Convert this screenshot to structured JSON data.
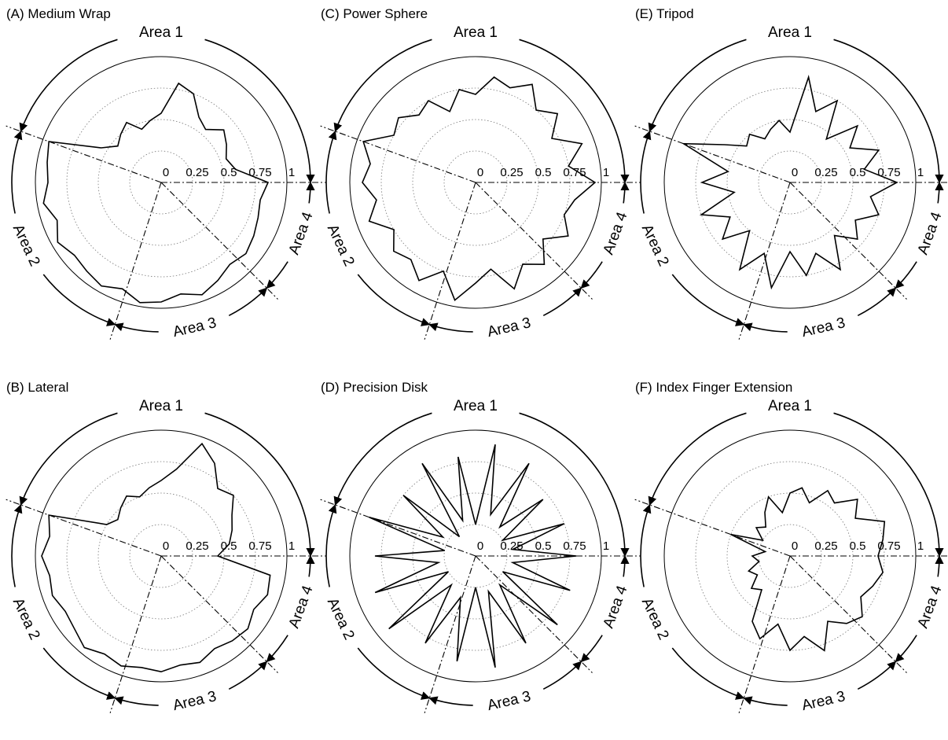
{
  "chart_data": [
    {
      "type": "polar",
      "title": "(A) Medium Wrap",
      "rlim": [
        0,
        1
      ],
      "rticks": [
        0,
        0.25,
        0.5,
        0.75,
        1
      ],
      "areas": [
        "Area 1",
        "Area 2",
        "Area 3",
        "Area 4"
      ],
      "color": "#000000",
      "values": [
        0.85,
        0.6,
        0.55,
        0.6,
        0.65,
        0.55,
        0.6,
        0.75,
        0.8,
        0.55,
        0.5,
        0.45,
        0.55,
        0.5,
        0.45,
        0.55,
        0.95,
        0.92,
        0.9,
        0.95,
        0.88,
        0.95,
        0.9,
        0.92,
        0.95,
        0.9,
        0.97,
        0.95,
        0.9,
        0.95,
        0.9,
        0.85,
        0.88,
        0.85,
        0.82,
        0.8
      ]
    },
    {
      "type": "polar",
      "title": "(B) Lateral",
      "rlim": [
        0,
        1
      ],
      "rticks": [
        0,
        0.25,
        0.5,
        0.75,
        1
      ],
      "areas": [
        "Area 1",
        "Area 2",
        "Area 3",
        "Area 4"
      ],
      "color": "#000000",
      "values": [
        0.45,
        0.55,
        0.6,
        0.65,
        0.75,
        0.7,
        0.85,
        0.95,
        0.7,
        0.6,
        0.55,
        0.5,
        0.55,
        0.5,
        0.45,
        0.5,
        0.95,
        0.9,
        0.95,
        0.9,
        0.92,
        0.88,
        0.9,
        0.95,
        0.9,
        0.93,
        0.9,
        0.92,
        0.88,
        0.9,
        0.85,
        0.88,
        0.9,
        0.85,
        0.9,
        0.88
      ]
    },
    {
      "type": "polar",
      "title": "(C)  Power Sphere",
      "rlim": [
        0,
        1
      ],
      "rticks": [
        0,
        0.25,
        0.5,
        0.75,
        1
      ],
      "areas": [
        "Area 1",
        "Area 2",
        "Area 3",
        "Area 4"
      ],
      "color": "#000000",
      "values": [
        0.95,
        0.75,
        0.9,
        0.7,
        0.85,
        0.75,
        0.9,
        0.8,
        0.85,
        0.7,
        0.75,
        0.6,
        0.75,
        0.7,
        0.8,
        0.75,
        0.95,
        0.85,
        0.9,
        0.8,
        0.9,
        0.75,
        0.85,
        0.8,
        0.9,
        0.75,
        0.95,
        0.8,
        0.7,
        0.9,
        0.75,
        0.85,
        0.7,
        0.85,
        0.75,
        0.8
      ]
    },
    {
      "type": "polar",
      "title": "(D) Precision Disk",
      "rlim": [
        0,
        1
      ],
      "rticks": [
        0,
        0.25,
        0.5,
        0.75,
        1
      ],
      "areas": [
        "Area 1",
        "Area 2",
        "Area 3",
        "Area 4"
      ],
      "color": "#000000",
      "values": [
        0.8,
        0.3,
        0.75,
        0.25,
        0.7,
        0.3,
        0.85,
        0.35,
        0.9,
        0.25,
        0.8,
        0.3,
        0.85,
        0.2,
        0.75,
        0.3,
        0.9,
        0.25,
        0.8,
        0.3,
        0.85,
        0.25,
        0.9,
        0.3,
        0.8,
        0.35,
        0.85,
        0.25,
        0.9,
        0.3,
        0.8,
        0.3,
        0.85,
        0.25,
        0.8,
        0.3
      ]
    },
    {
      "type": "polar",
      "title": "(E) Tripod",
      "rlim": [
        0,
        1
      ],
      "rticks": [
        0,
        0.25,
        0.5,
        0.75,
        1
      ],
      "areas": [
        "Area 1",
        "Area 2",
        "Area 3",
        "Area 4"
      ],
      "color": "#000000",
      "values": [
        0.85,
        0.6,
        0.75,
        0.55,
        0.7,
        0.45,
        0.75,
        0.6,
        0.85,
        0.4,
        0.5,
        0.45,
        0.4,
        0.5,
        0.45,
        0.6,
        0.9,
        0.5,
        0.7,
        0.45,
        0.75,
        0.55,
        0.7,
        0.5,
        0.8,
        0.6,
        0.85,
        0.55,
        0.75,
        0.6,
        0.8,
        0.55,
        0.7,
        0.6,
        0.75,
        0.65
      ]
    },
    {
      "type": "polar",
      "title": "(F) Index Finger Extension",
      "rlim": [
        0,
        1
      ],
      "rticks": [
        0,
        0.25,
        0.5,
        0.75,
        1
      ],
      "areas": [
        "Area 1",
        "Area 2",
        "Area 3",
        "Area 4"
      ],
      "color": "#000000",
      "values": [
        0.7,
        0.75,
        0.8,
        0.6,
        0.7,
        0.55,
        0.6,
        0.45,
        0.55,
        0.5,
        0.35,
        0.5,
        0.4,
        0.3,
        0.35,
        0.25,
        0.5,
        0.2,
        0.3,
        0.25,
        0.35,
        0.3,
        0.4,
        0.35,
        0.6,
        0.7,
        0.55,
        0.75,
        0.65,
        0.8,
        0.6,
        0.7,
        0.75,
        0.65,
        0.7,
        0.75
      ]
    }
  ]
}
